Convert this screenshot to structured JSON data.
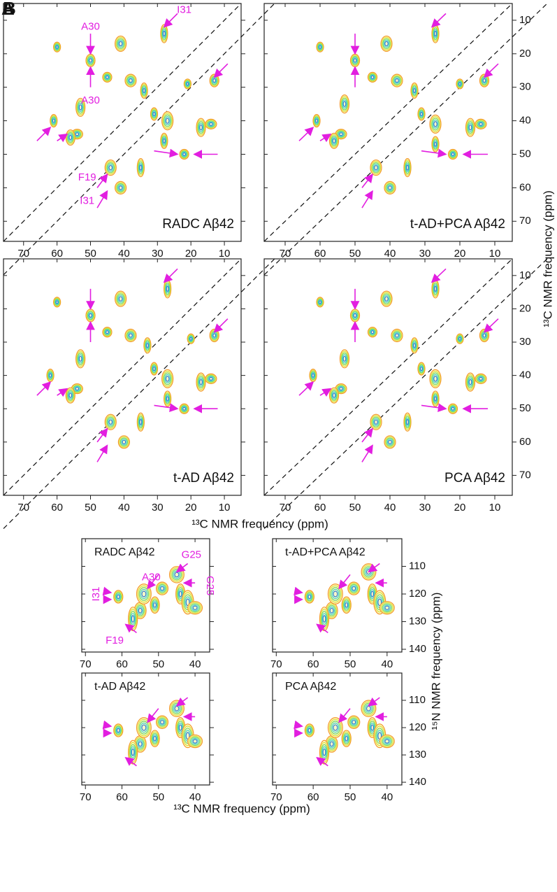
{
  "panel_labels": [
    "A",
    "B"
  ],
  "axis_titles": {
    "top_x": "¹³C NMR frequency (ppm)",
    "top_y": "¹³C NMR frequency (ppm)",
    "bottom_x": "¹³C NMR frequency (ppm)",
    "bottom_y": "¹⁵N NMR frequency (ppm)"
  },
  "chart_data": [
    {
      "type": "contour",
      "label": "RADC Aβ42",
      "xlim": [
        76,
        5
      ],
      "ylim": [
        5,
        76
      ],
      "xticks": [
        70,
        60,
        50,
        40,
        30,
        20,
        10
      ],
      "yticks": [
        10,
        20,
        30,
        40,
        50,
        60,
        70
      ],
      "peaks": {
        "x": [
          60,
          50,
          41,
          28,
          45,
          38,
          34,
          53,
          54,
          61,
          56,
          27,
          21,
          13,
          44,
          35,
          22,
          41,
          28,
          17,
          14,
          31
        ],
        "y": [
          18,
          22,
          17,
          14,
          27,
          28,
          31,
          36,
          44,
          40,
          45,
          40,
          29,
          28,
          54,
          54,
          50,
          60,
          46,
          42,
          41,
          38
        ]
      },
      "annotations": [
        "A30",
        "A30",
        "I31",
        "F19",
        "I31"
      ]
    },
    {
      "type": "contour",
      "label": "t-AD+PCA Aβ42",
      "xlim": [
        76,
        5
      ],
      "ylim": [
        5,
        76
      ],
      "xticks": [
        70,
        60,
        50,
        40,
        30,
        20,
        10
      ],
      "yticks": [
        10,
        20,
        30,
        40,
        50,
        60,
        70
      ],
      "peaks": {
        "x": [
          60,
          50,
          41,
          27,
          45,
          38,
          33,
          53,
          54,
          61,
          56,
          27,
          20,
          13,
          44,
          35,
          22,
          40,
          27,
          17,
          14,
          31
        ],
        "y": [
          18,
          22,
          17,
          14,
          27,
          28,
          31,
          35,
          44,
          40,
          46,
          41,
          29,
          28,
          54,
          54,
          50,
          60,
          47,
          42,
          41,
          38
        ]
      },
      "annotations": []
    },
    {
      "type": "contour",
      "label": "t-AD Aβ42",
      "xlim": [
        76,
        5
      ],
      "ylim": [
        5,
        76
      ],
      "xticks": [
        70,
        60,
        50,
        40,
        30,
        20,
        10
      ],
      "yticks": [
        10,
        20,
        30,
        40,
        50,
        60,
        70
      ],
      "peaks": {
        "x": [
          60,
          50,
          41,
          27,
          45,
          38,
          33,
          53,
          54,
          62,
          56,
          27,
          20,
          13,
          44,
          35,
          22,
          40,
          27,
          17,
          14,
          31
        ],
        "y": [
          18,
          22,
          17,
          14,
          27,
          28,
          31,
          35,
          44,
          40,
          46,
          41,
          29,
          28,
          54,
          54,
          50,
          60,
          47,
          42,
          41,
          38
        ]
      },
      "annotations": []
    },
    {
      "type": "contour",
      "label": "PCA Aβ42",
      "xlim": [
        76,
        5
      ],
      "ylim": [
        5,
        76
      ],
      "xticks": [
        70,
        60,
        50,
        40,
        30,
        20,
        10
      ],
      "yticks": [
        10,
        20,
        30,
        40,
        50,
        60,
        70
      ],
      "peaks": {
        "x": [
          60,
          50,
          41,
          27,
          45,
          38,
          33,
          53,
          54,
          62,
          56,
          27,
          20,
          13,
          44,
          35,
          22,
          40,
          27,
          17,
          14,
          31
        ],
        "y": [
          18,
          22,
          17,
          14,
          27,
          28,
          31,
          35,
          44,
          40,
          46,
          41,
          29,
          28,
          54,
          54,
          50,
          60,
          47,
          42,
          41,
          38
        ]
      },
      "annotations": []
    },
    {
      "type": "contour",
      "label": "RADC Aβ42",
      "xlim": [
        71,
        36
      ],
      "ylim": [
        100,
        141
      ],
      "xticks": [
        70,
        60,
        50,
        40
      ],
      "yticks": [
        110,
        120,
        130,
        140
      ],
      "peaks": {
        "x": [
          61,
          55,
          54,
          57,
          49,
          45,
          44,
          42,
          40,
          51
        ],
        "y": [
          121,
          126,
          120,
          129,
          118,
          113,
          120,
          123,
          125,
          124
        ]
      },
      "annotations": [
        "G25",
        "G25",
        "A30",
        "I31",
        "F19"
      ]
    },
    {
      "type": "contour",
      "label": "t-AD+PCA Aβ42",
      "xlim": [
        71,
        36
      ],
      "ylim": [
        100,
        141
      ],
      "xticks": [
        70,
        60,
        50,
        40
      ],
      "yticks": [
        110,
        120,
        130,
        140
      ],
      "peaks": {
        "x": [
          61,
          55,
          54,
          57,
          49,
          45,
          44,
          42,
          40,
          51
        ],
        "y": [
          121,
          126,
          120,
          129,
          118,
          112,
          120,
          123,
          125,
          124
        ]
      },
      "annotations": []
    },
    {
      "type": "contour",
      "label": "t-AD Aβ42",
      "xlim": [
        71,
        36
      ],
      "ylim": [
        100,
        141
      ],
      "xticks": [
        70,
        60,
        50,
        40
      ],
      "yticks": [
        110,
        120,
        130,
        140
      ],
      "peaks": {
        "x": [
          61,
          55,
          54,
          57,
          49,
          45,
          44,
          42,
          40,
          51
        ],
        "y": [
          121,
          126,
          120,
          129,
          118,
          113,
          120,
          123,
          125,
          124
        ]
      },
      "annotations": []
    },
    {
      "type": "contour",
      "label": "PCA Aβ42",
      "xlim": [
        71,
        36
      ],
      "ylim": [
        100,
        141
      ],
      "xticks": [
        70,
        60,
        50,
        40
      ],
      "yticks": [
        110,
        120,
        130,
        140
      ],
      "peaks": {
        "x": [
          61,
          55,
          54,
          57,
          49,
          45,
          44,
          42,
          40,
          51
        ],
        "y": [
          121,
          126,
          120,
          129,
          118,
          113,
          120,
          123,
          125,
          124
        ]
      },
      "annotations": []
    }
  ]
}
